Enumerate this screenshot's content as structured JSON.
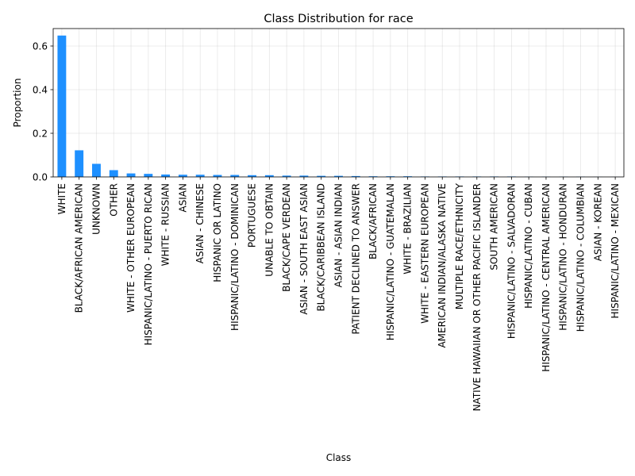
{
  "chart_data": {
    "type": "bar",
    "title": "Class Distribution for race",
    "xlabel": "Class",
    "ylabel": "Proportion",
    "ylim": [
      0,
      0.68
    ],
    "yticks": [
      0.0,
      0.2,
      0.4,
      0.6
    ],
    "ytick_labels": [
      "0.0",
      "0.2",
      "0.4",
      "0.6"
    ],
    "grid": true,
    "bar_color": "#1e90ff",
    "categories": [
      "WHITE",
      "BLACK/AFRICAN AMERICAN",
      "UNKNOWN",
      "OTHER",
      "WHITE - OTHER EUROPEAN",
      "HISPANIC/LATINO - PUERTO RICAN",
      "WHITE - RUSSIAN",
      "ASIAN",
      "ASIAN - CHINESE",
      "HISPANIC OR LATINO",
      "HISPANIC/LATINO - DOMINICAN",
      "PORTUGUESE",
      "UNABLE TO OBTAIN",
      "BLACK/CAPE VERDEAN",
      "ASIAN - SOUTH EAST ASIAN",
      "BLACK/CARIBBEAN ISLAND",
      "ASIAN - ASIAN INDIAN",
      "PATIENT DECLINED TO ANSWER",
      "BLACK/AFRICAN",
      "HISPANIC/LATINO - GUATEMALAN",
      "WHITE - BRAZILIAN",
      "WHITE - EASTERN EUROPEAN",
      "AMERICAN INDIAN/ALASKA NATIVE",
      "MULTIPLE RACE/ETHNICITY",
      "NATIVE HAWAIIAN OR OTHER PACIFIC ISLANDER",
      "SOUTH AMERICAN",
      "HISPANIC/LATINO - SALVADORAN",
      "HISPANIC/LATINO - CUBAN",
      "HISPANIC/LATINO - CENTRAL AMERICAN",
      "HISPANIC/LATINO - HONDURAN",
      "HISPANIC/LATINO - COLUMBIAN",
      "ASIAN - KOREAN",
      "HISPANIC/LATINO - MEXICAN"
    ],
    "values": [
      0.648,
      0.122,
      0.06,
      0.031,
      0.016,
      0.014,
      0.011,
      0.01,
      0.01,
      0.009,
      0.009,
      0.008,
      0.008,
      0.006,
      0.006,
      0.005,
      0.005,
      0.004,
      0.003,
      0.003,
      0.003,
      0.002,
      0.002,
      0.002,
      0.002,
      0.002,
      0.002,
      0.001,
      0.001,
      0.001,
      0.001,
      0.0005,
      0.0003
    ]
  }
}
